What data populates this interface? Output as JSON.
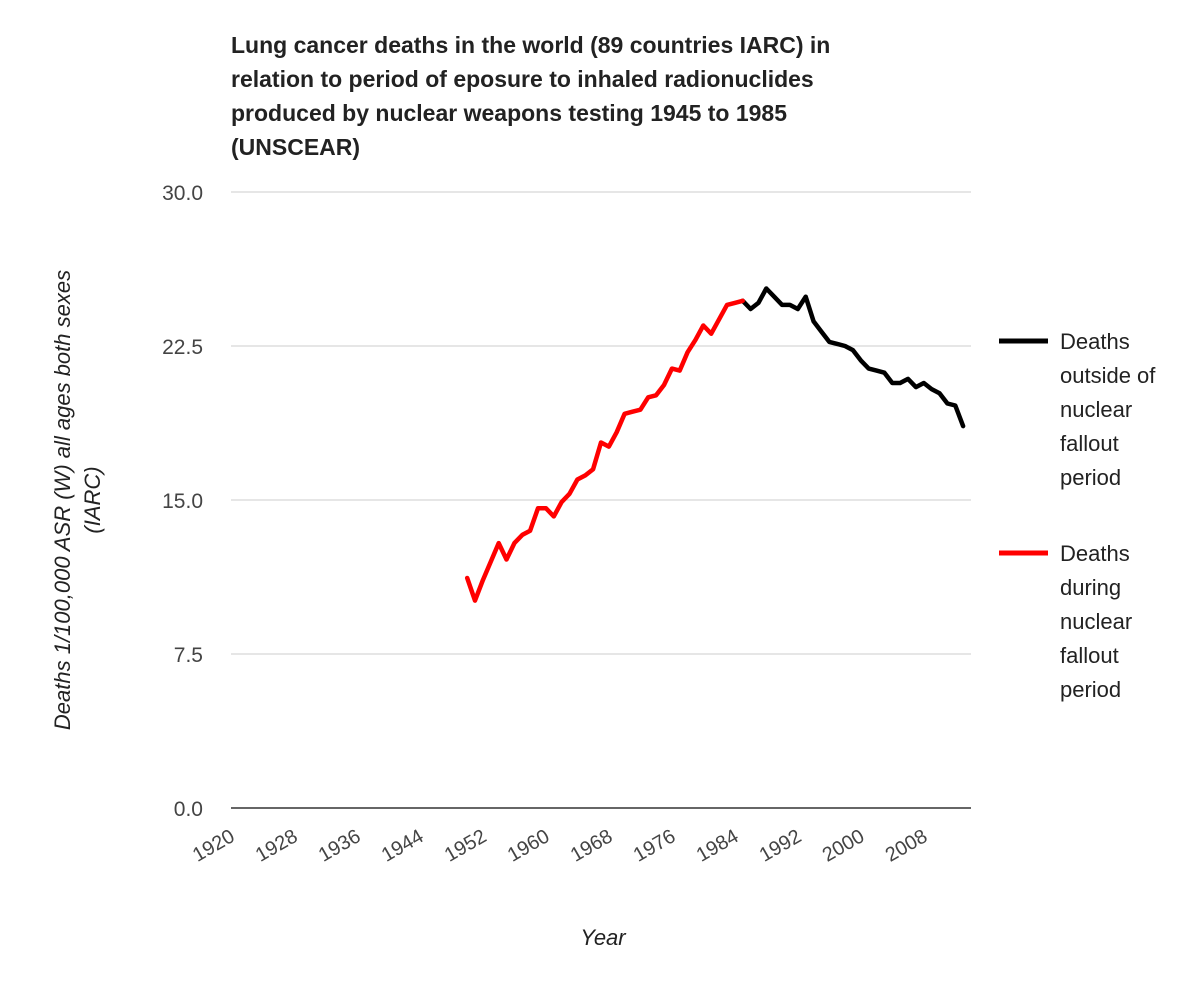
{
  "chart_data": {
    "type": "line",
    "title": "Lung cancer deaths in the world (89 countries IARC) in\nrelation to period of eposure to inhaled radionuclides\nproduced by nuclear weapons testing 1945 to 1985\n(UNSCEAR)",
    "xlabel": "Year",
    "ylabel": "Deaths 1/100,000 ASR (W) all ages both sexes (IARC)",
    "xlim": [
      1920,
      2014
    ],
    "ylim": [
      0,
      30
    ],
    "x_ticks": [
      "1920",
      "1928",
      "1936",
      "1944",
      "1952",
      "1960",
      "1968",
      "1976",
      "1984",
      "1992",
      "2000",
      "2008"
    ],
    "y_ticks": [
      "0.0",
      "7.5",
      "15.0",
      "22.5",
      "30.0"
    ],
    "grid": true,
    "legend_position": "right",
    "series": [
      {
        "name": "Deaths outside of nuclear fallout period",
        "color": "#000000",
        "x": [
          1985,
          1986,
          1987,
          1988,
          1989,
          1990,
          1991,
          1992,
          1993,
          1994,
          1995,
          1996,
          1997,
          1998,
          1999,
          2000,
          2001,
          2002,
          2003,
          2004,
          2005,
          2006,
          2007,
          2008,
          2009,
          2010,
          2011,
          2012,
          2013
        ],
        "values": [
          24.7,
          24.3,
          24.6,
          25.3,
          24.9,
          24.5,
          24.5,
          24.3,
          24.9,
          23.7,
          23.2,
          22.7,
          22.6,
          22.5,
          22.3,
          21.8,
          21.4,
          21.3,
          21.2,
          20.7,
          20.7,
          20.9,
          20.5,
          20.7,
          20.4,
          20.2,
          19.7,
          19.6,
          18.6
        ]
      },
      {
        "name": "Deaths during nuclear fallout period",
        "color": "#ff0000",
        "x": [
          1950,
          1951,
          1952,
          1953,
          1954,
          1955,
          1956,
          1957,
          1958,
          1959,
          1960,
          1961,
          1962,
          1963,
          1964,
          1965,
          1966,
          1967,
          1968,
          1969,
          1970,
          1971,
          1972,
          1973,
          1974,
          1975,
          1976,
          1977,
          1978,
          1979,
          1980,
          1981,
          1982,
          1983,
          1984,
          1985
        ],
        "values": [
          11.2,
          10.1,
          11.1,
          12.0,
          12.9,
          12.1,
          12.9,
          13.3,
          13.5,
          14.6,
          14.6,
          14.2,
          14.9,
          15.3,
          16.0,
          16.2,
          16.5,
          17.8,
          17.6,
          18.3,
          19.2,
          19.3,
          19.4,
          20.0,
          20.1,
          20.6,
          21.4,
          21.3,
          22.2,
          22.8,
          23.5,
          23.1,
          23.8,
          24.5,
          24.6,
          24.7
        ]
      }
    ]
  }
}
